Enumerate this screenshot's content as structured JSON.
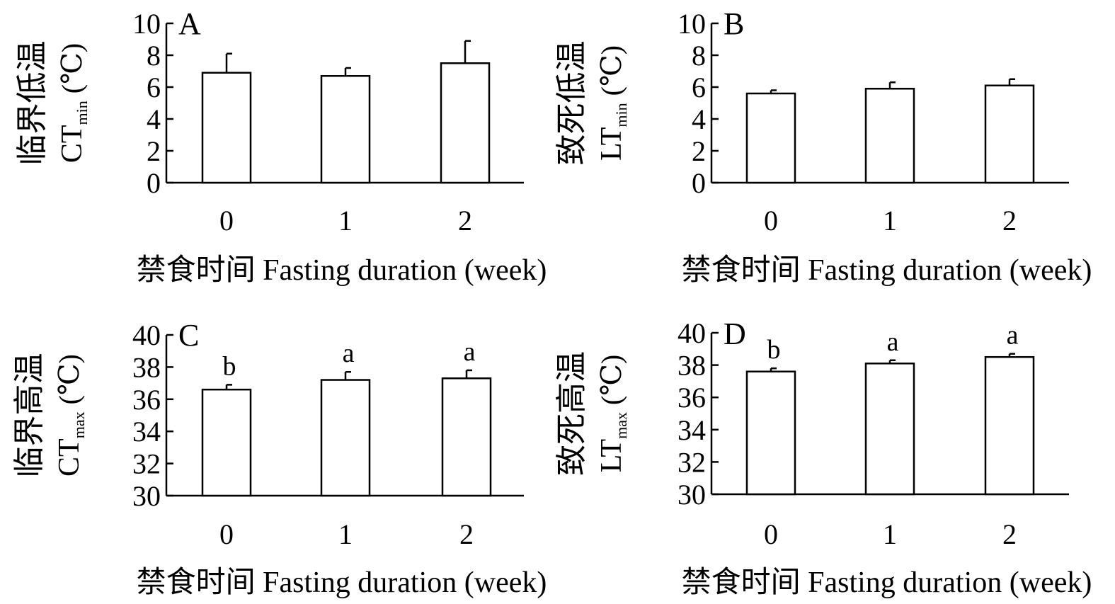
{
  "chart_data": [
    {
      "panel": "A",
      "type": "bar",
      "categories": [
        "0",
        "1",
        "2"
      ],
      "values": [
        6.9,
        6.7,
        7.5
      ],
      "errors": [
        1.2,
        0.5,
        1.4
      ],
      "significance": [],
      "ylim": [
        0,
        10
      ],
      "yticks": [
        "0",
        "2",
        "4",
        "6",
        "8",
        "10"
      ],
      "ylabel": {
        "cn": "临界低温",
        "abbr": "CT",
        "sub": "min",
        "unit": "(℃)"
      },
      "xlabel": "禁食时间 Fasting duration (week)"
    },
    {
      "panel": "B",
      "type": "bar",
      "categories": [
        "0",
        "1",
        "2"
      ],
      "values": [
        5.6,
        5.9,
        6.1
      ],
      "errors": [
        0.2,
        0.4,
        0.4
      ],
      "significance": [],
      "ylim": [
        0,
        10
      ],
      "yticks": [
        "0",
        "2",
        "4",
        "6",
        "8",
        "10"
      ],
      "ylabel": {
        "cn": "致死低温",
        "abbr": "LT",
        "sub": "min",
        "unit": "(℃)"
      },
      "xlabel": "禁食时间 Fasting duration (week)"
    },
    {
      "panel": "C",
      "type": "bar",
      "categories": [
        "0",
        "1",
        "2"
      ],
      "values": [
        36.6,
        37.2,
        37.3
      ],
      "errors": [
        0.3,
        0.5,
        0.5
      ],
      "significance": [
        "b",
        "a",
        "a"
      ],
      "ylim": [
        30,
        40
      ],
      "yticks": [
        "30",
        "32",
        "34",
        "36",
        "38",
        "40"
      ],
      "ylabel": {
        "cn": "临界高温",
        "abbr": "CT",
        "sub": "max",
        "unit": "(℃)"
      },
      "xlabel": "禁食时间 Fasting duration (week)"
    },
    {
      "panel": "D",
      "type": "bar",
      "categories": [
        "0",
        "1",
        "2"
      ],
      "values": [
        37.6,
        38.1,
        38.5
      ],
      "errors": [
        0.2,
        0.2,
        0.2
      ],
      "significance": [
        "b",
        "a",
        "a"
      ],
      "ylim": [
        30,
        40
      ],
      "yticks": [
        "30",
        "32",
        "34",
        "36",
        "38",
        "40"
      ],
      "ylabel": {
        "cn": "致死高温",
        "abbr": "LT",
        "sub": "max",
        "unit": "(℃)"
      },
      "xlabel": "禁食时间 Fasting duration (week)"
    }
  ]
}
